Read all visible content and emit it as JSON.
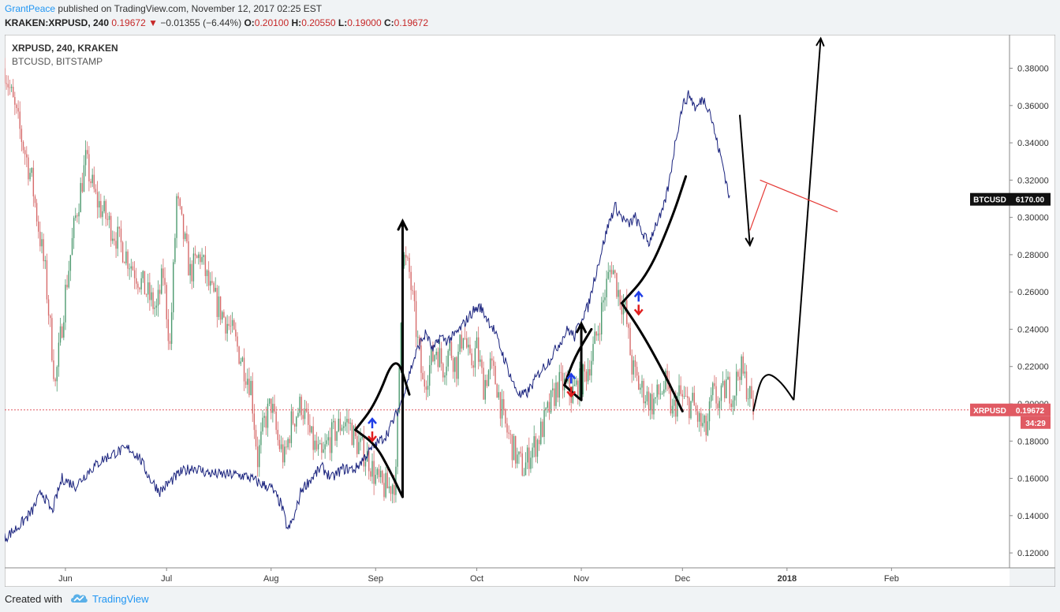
{
  "header": {
    "author": "GrantPeace",
    "published_text": "published on TradingView.com, November 12, 2017 02:25 EST",
    "symbol": "KRAKEN:XRPUSD, 240",
    "last": "0.19672",
    "change": "−0.01355 (−6.44%)",
    "o_label": "O:",
    "o_value": "0.20100",
    "h_label": "H:",
    "h_value": "0.20550",
    "l_label": "L:",
    "l_value": "0.19000",
    "c_label": "C:",
    "c_value": "0.19672"
  },
  "legend": {
    "main": "XRPUSD, 240, KRAKEN",
    "compare": "BTCUSD, BITSTAMP"
  },
  "footer": {
    "created_with": "Created with",
    "brand": "TradingView"
  },
  "colors": {
    "background": "#ffffff",
    "up": "#4d9a6f",
    "down": "#d66a6a",
    "btc_line": "#1a237e",
    "xrp_badge": "#e05a63",
    "btc_badge": "#111111",
    "drawing": "#000000",
    "red_line": "#e53935",
    "blue_arrow": "#1e3ce6",
    "red_arrow": "#e01e1e"
  },
  "chart_data": {
    "type": "line",
    "title": "XRPUSD, 240, KRAKEN",
    "xlabel": "",
    "ylabel": "",
    "x_ticks": [
      "Jun",
      "Jul",
      "Aug",
      "Sep",
      "Oct",
      "Nov",
      "Dec",
      "2018",
      "Feb"
    ],
    "y_ticks": [
      "0.12000",
      "0.14000",
      "0.16000",
      "0.18000",
      "0.20000",
      "0.22000",
      "0.24000",
      "0.26000",
      "0.28000",
      "0.30000",
      "0.32000",
      "0.34000",
      "0.36000",
      "0.38000"
    ],
    "ylim": [
      0.112,
      0.398
    ],
    "x_range_days": [
      -18,
      280
    ],
    "price_badges": [
      {
        "symbol": "BTCUSD",
        "value": "6170.00",
        "y": 0.3097
      },
      {
        "symbol": "XRPUSD",
        "value": "0.19672",
        "y": 0.19672,
        "countdown": "34:29"
      }
    ],
    "series": [
      {
        "name": "XRPUSD",
        "style": "candles",
        "points": [
          [
            -18,
            0.38
          ],
          [
            -14,
            0.35
          ],
          [
            -10,
            0.32
          ],
          [
            -6,
            0.27
          ],
          [
            -3,
            0.21
          ],
          [
            0,
            0.26
          ],
          [
            3,
            0.3
          ],
          [
            6,
            0.33
          ],
          [
            9,
            0.31
          ],
          [
            12,
            0.3
          ],
          [
            15,
            0.29
          ],
          [
            18,
            0.28
          ],
          [
            21,
            0.27
          ],
          [
            24,
            0.26
          ],
          [
            27,
            0.25
          ],
          [
            29,
            0.27
          ],
          [
            31,
            0.23
          ],
          [
            33,
            0.31
          ],
          [
            35,
            0.29
          ],
          [
            37,
            0.27
          ],
          [
            40,
            0.28
          ],
          [
            43,
            0.26
          ],
          [
            46,
            0.25
          ],
          [
            49,
            0.24
          ],
          [
            51,
            0.23
          ],
          [
            53,
            0.22
          ],
          [
            55,
            0.21
          ],
          [
            57,
            0.17
          ],
          [
            59,
            0.19
          ],
          [
            61,
            0.2
          ],
          [
            63,
            0.18
          ],
          [
            65,
            0.17
          ],
          [
            67,
            0.19
          ],
          [
            70,
            0.2
          ],
          [
            73,
            0.18
          ],
          [
            76,
            0.17
          ],
          [
            78,
            0.18
          ],
          [
            80,
            0.185
          ],
          [
            82,
            0.19
          ],
          [
            84,
            0.19
          ],
          [
            86,
            0.18
          ],
          [
            88,
            0.175
          ],
          [
            90,
            0.17
          ],
          [
            92,
            0.16
          ],
          [
            94,
            0.155
          ],
          [
            96,
            0.155
          ],
          [
            98,
            0.16
          ],
          [
            100,
            0.28
          ],
          [
            102,
            0.27
          ],
          [
            104,
            0.24
          ],
          [
            106,
            0.21
          ],
          [
            108,
            0.22
          ],
          [
            110,
            0.23
          ],
          [
            112,
            0.22
          ],
          [
            114,
            0.23
          ],
          [
            116,
            0.22
          ],
          [
            118,
            0.24
          ],
          [
            120,
            0.22
          ],
          [
            122,
            0.23
          ],
          [
            124,
            0.21
          ],
          [
            126,
            0.22
          ],
          [
            128,
            0.21
          ],
          [
            130,
            0.19
          ],
          [
            132,
            0.18
          ],
          [
            134,
            0.17
          ],
          [
            136,
            0.165
          ],
          [
            138,
            0.175
          ],
          [
            140,
            0.18
          ],
          [
            142,
            0.19
          ],
          [
            144,
            0.2
          ],
          [
            146,
            0.21
          ],
          [
            148,
            0.21
          ],
          [
            150,
            0.205
          ],
          [
            152,
            0.21
          ],
          [
            154,
            0.215
          ],
          [
            156,
            0.225
          ],
          [
            158,
            0.24
          ],
          [
            160,
            0.26
          ],
          [
            162,
            0.275
          ],
          [
            164,
            0.26
          ],
          [
            166,
            0.25
          ],
          [
            168,
            0.22
          ],
          [
            170,
            0.21
          ],
          [
            172,
            0.205
          ],
          [
            174,
            0.2
          ],
          [
            176,
            0.205
          ],
          [
            178,
            0.21
          ],
          [
            180,
            0.195
          ],
          [
            182,
            0.205
          ],
          [
            184,
            0.2
          ],
          [
            186,
            0.2
          ],
          [
            188,
            0.19
          ],
          [
            190,
            0.185
          ],
          [
            192,
            0.205
          ],
          [
            194,
            0.2
          ],
          [
            196,
            0.21
          ],
          [
            198,
            0.205
          ],
          [
            200,
            0.22
          ],
          [
            202,
            0.21
          ],
          [
            204,
            0.19672
          ]
        ]
      },
      {
        "name": "BTCUSD",
        "style": "line",
        "points": [
          [
            -18,
            0.128
          ],
          [
            -14,
            0.134
          ],
          [
            -10,
            0.142
          ],
          [
            -7,
            0.153
          ],
          [
            -4,
            0.142
          ],
          [
            -1,
            0.16
          ],
          [
            3,
            0.156
          ],
          [
            7,
            0.164
          ],
          [
            11,
            0.17
          ],
          [
            15,
            0.174
          ],
          [
            19,
            0.176
          ],
          [
            22,
            0.171
          ],
          [
            25,
            0.16
          ],
          [
            28,
            0.153
          ],
          [
            31,
            0.158
          ],
          [
            34,
            0.163
          ],
          [
            38,
            0.166
          ],
          [
            42,
            0.163
          ],
          [
            46,
            0.162
          ],
          [
            50,
            0.162
          ],
          [
            54,
            0.161
          ],
          [
            58,
            0.157
          ],
          [
            61,
            0.155
          ],
          [
            64,
            0.146
          ],
          [
            66,
            0.132
          ],
          [
            68,
            0.14
          ],
          [
            70,
            0.154
          ],
          [
            73,
            0.16
          ],
          [
            76,
            0.166
          ],
          [
            79,
            0.16
          ],
          [
            82,
            0.165
          ],
          [
            86,
            0.165
          ],
          [
            89,
            0.172
          ],
          [
            92,
            0.178
          ],
          [
            95,
            0.183
          ],
          [
            97,
            0.19
          ],
          [
            99,
            0.198
          ],
          [
            101,
            0.21
          ],
          [
            103,
            0.222
          ],
          [
            105,
            0.232
          ],
          [
            107,
            0.238
          ],
          [
            109,
            0.228
          ],
          [
            111,
            0.236
          ],
          [
            113,
            0.234
          ],
          [
            115,
            0.236
          ],
          [
            117,
            0.24
          ],
          [
            119,
            0.245
          ],
          [
            121,
            0.25
          ],
          [
            123,
            0.252
          ],
          [
            125,
            0.246
          ],
          [
            127,
            0.24
          ],
          [
            129,
            0.23
          ],
          [
            131,
            0.22
          ],
          [
            133,
            0.21
          ],
          [
            135,
            0.204
          ],
          [
            137,
            0.206
          ],
          [
            139,
            0.212
          ],
          [
            141,
            0.218
          ],
          [
            143,
            0.222
          ],
          [
            145,
            0.228
          ],
          [
            147,
            0.234
          ],
          [
            149,
            0.24
          ],
          [
            151,
            0.236
          ],
          [
            153,
            0.246
          ],
          [
            155,
            0.252
          ],
          [
            157,
            0.268
          ],
          [
            159,
            0.282
          ],
          [
            161,
            0.296
          ],
          [
            163,
            0.306
          ],
          [
            165,
            0.3
          ],
          [
            167,
            0.296
          ],
          [
            169,
            0.3
          ],
          [
            171,
            0.292
          ],
          [
            173,
            0.286
          ],
          [
            175,
            0.296
          ],
          [
            177,
            0.302
          ],
          [
            179,
            0.318
          ],
          [
            181,
            0.342
          ],
          [
            183,
            0.36
          ],
          [
            185,
            0.366
          ],
          [
            187,
            0.358
          ],
          [
            189,
            0.364
          ],
          [
            191,
            0.358
          ],
          [
            193,
            0.342
          ],
          [
            195,
            0.328
          ],
          [
            197,
            0.31
          ]
        ]
      }
    ],
    "drawings": [
      {
        "type": "curve",
        "name": "curve-aug-upper",
        "path": [
          [
            86,
            0.186
          ],
          [
            92,
            0.2
          ],
          [
            98,
            0.228
          ],
          [
            102,
            0.205
          ]
        ]
      },
      {
        "type": "curve",
        "name": "curve-aug-lower",
        "path": [
          [
            86,
            0.186
          ],
          [
            92,
            0.178
          ],
          [
            96,
            0.165
          ],
          [
            100,
            0.15
          ]
        ]
      },
      {
        "type": "arrow",
        "name": "arrow-aug-up",
        "from": [
          100,
          0.15
        ],
        "to": [
          100,
          0.298
        ]
      },
      {
        "type": "curve",
        "name": "curve-oct-upper",
        "path": [
          [
            148,
            0.21
          ],
          [
            151,
            0.225
          ],
          [
            156,
            0.24
          ]
        ]
      },
      {
        "type": "curve",
        "name": "curve-oct-lower",
        "path": [
          [
            148,
            0.21
          ],
          [
            151,
            0.205
          ],
          [
            153,
            0.202
          ]
        ]
      },
      {
        "type": "arrow",
        "name": "arrow-oct-up",
        "from": [
          153,
          0.202
        ],
        "to": [
          153,
          0.243
        ]
      },
      {
        "type": "curve",
        "name": "curve-big-upper",
        "path": [
          [
            165,
            0.254
          ],
          [
            173,
            0.27
          ],
          [
            180,
            0.3
          ],
          [
            184,
            0.322
          ]
        ]
      },
      {
        "type": "curve",
        "name": "curve-big-lower",
        "path": [
          [
            165,
            0.254
          ],
          [
            171,
            0.238
          ],
          [
            178,
            0.215
          ],
          [
            183,
            0.196
          ]
        ]
      },
      {
        "type": "arrow",
        "name": "arrow-down",
        "from": [
          200,
          0.355
        ],
        "to": [
          203,
          0.285
        ]
      },
      {
        "type": "polyline",
        "name": "projection-path",
        "path": [
          [
            204,
            0.196
          ],
          [
            206,
            0.212
          ],
          [
            208,
            0.216
          ],
          [
            210,
            0.215
          ],
          [
            213,
            0.21
          ],
          [
            216,
            0.202
          ]
        ]
      },
      {
        "type": "arrow",
        "name": "projection-arrow-up",
        "from": [
          216,
          0.202
        ],
        "to": [
          224,
          0.396
        ]
      },
      {
        "type": "line",
        "name": "red-trend-line",
        "from": [
          206,
          0.32
        ],
        "to": [
          229,
          0.303
        ],
        "color": "red"
      },
      {
        "type": "line",
        "name": "red-connector",
        "from": [
          203,
          0.293
        ],
        "to": [
          208,
          0.318
        ],
        "color": "red"
      }
    ],
    "arrow_markers": [
      {
        "name": "marker-aug",
        "x": 91,
        "y": 0.186
      },
      {
        "name": "marker-oct",
        "x": 150,
        "y": 0.21
      },
      {
        "name": "marker-big",
        "x": 170,
        "y": 0.254
      }
    ],
    "grid": false,
    "legend_position": "top-left"
  }
}
